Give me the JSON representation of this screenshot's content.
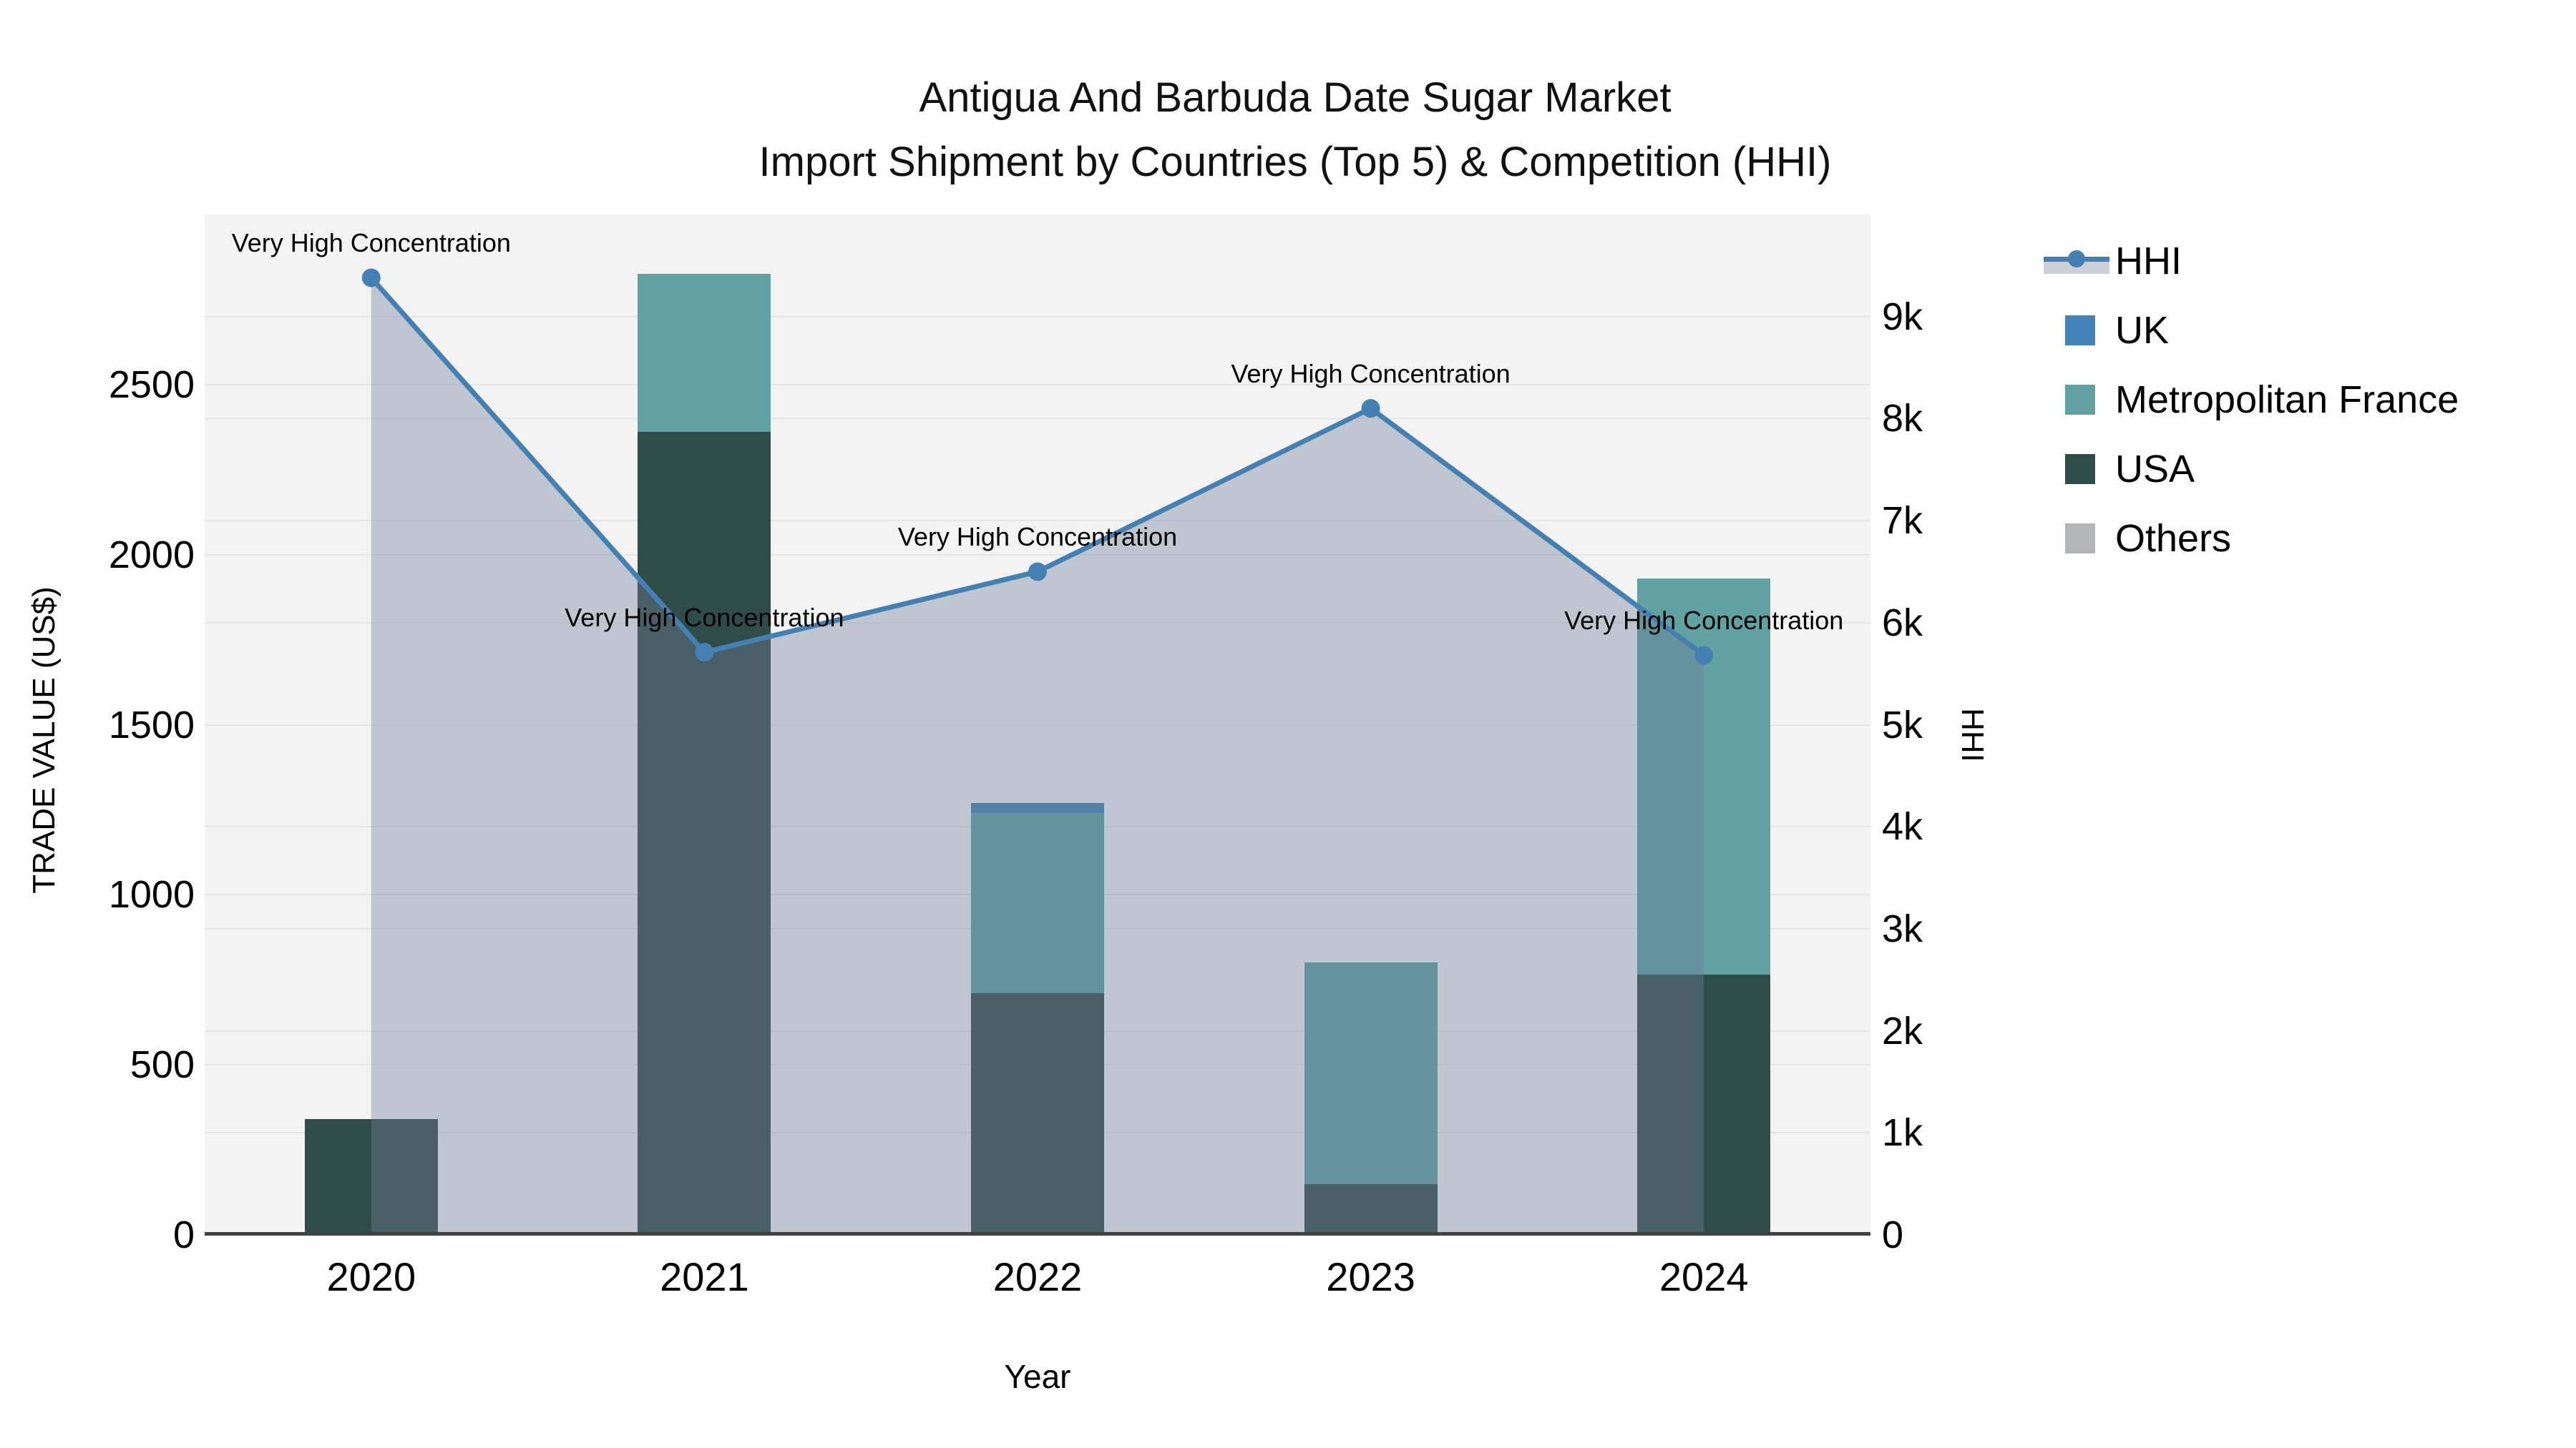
{
  "title": {
    "line1": "Antigua And Barbuda Date Sugar Market",
    "line2": "Import Shipment by Countries (Top 5) & Competition (HHI)"
  },
  "axes": {
    "x": {
      "label": "Year",
      "ticks": [
        "2020",
        "2021",
        "2022",
        "2023",
        "2024"
      ]
    },
    "left": {
      "label": "TRADE VALUE (US$)",
      "ticks": [
        "0",
        "500",
        "1000",
        "1500",
        "2000",
        "2500"
      ],
      "range": [
        0,
        3000
      ],
      "tick_step": 500
    },
    "right": {
      "label": "HHI",
      "ticks": [
        "0",
        "1k",
        "2k",
        "3k",
        "4k",
        "5k",
        "6k",
        "7k",
        "8k",
        "9k"
      ],
      "range": [
        0,
        10000
      ],
      "tick_step": 1000
    }
  },
  "legend": {
    "items": [
      {
        "label": "HHI",
        "type": "line"
      },
      {
        "label": "UK",
        "type": "swatch",
        "color": "#4484b8"
      },
      {
        "label": "Metropolitan France",
        "type": "swatch",
        "color": "#60a1a2"
      },
      {
        "label": "USA",
        "type": "swatch",
        "color": "#2f4c48"
      },
      {
        "label": "Others",
        "type": "swatch",
        "color": "#b2b5b7"
      }
    ]
  },
  "colors": {
    "plot_bg": "#f2f3f2",
    "gridline": "#e4e6e8",
    "axis_line": "#3f4142",
    "hhi_line": "#4580b2",
    "hhi_fill": "rgba(110,125,150,0.38)",
    "UK": "#4484b8",
    "Metropolitan France": "#60a1a2",
    "USA": "#2f4c48",
    "Others": "#b2b5b7"
  },
  "chart_data": {
    "type": "composite",
    "subtype": "stacked-bar + line",
    "categories": [
      "2020",
      "2021",
      "2022",
      "2023",
      "2024"
    ],
    "bar_axis": "left",
    "stack_order_bottom_to_top": [
      "USA",
      "Metropolitan France",
      "UK",
      "Others"
    ],
    "series": [
      {
        "name": "UK",
        "type": "bar",
        "values": [
          0,
          0,
          30,
          0,
          0
        ]
      },
      {
        "name": "Metropolitan France",
        "type": "bar",
        "values": [
          0,
          465,
          530,
          650,
          1165
        ]
      },
      {
        "name": "USA",
        "type": "bar",
        "values": [
          340,
          2360,
          710,
          150,
          765
        ]
      },
      {
        "name": "Others",
        "type": "bar",
        "values": [
          0,
          0,
          0,
          0,
          0
        ]
      },
      {
        "name": "HHI",
        "type": "line",
        "axis": "right",
        "fill": "tozeroy",
        "values": [
          9380,
          5710,
          6500,
          8100,
          5680
        ]
      }
    ],
    "bar_totals": [
      340,
      2825,
      1270,
      800,
      1930
    ],
    "annotations": [
      {
        "text": "Very High Concentration",
        "x": "2020",
        "y": 9380,
        "axis": "right"
      },
      {
        "text": "Very High Concentration",
        "x": "2021",
        "y": 5710,
        "axis": "right"
      },
      {
        "text": "Very High Concentration",
        "x": "2022",
        "y": 6500,
        "axis": "right"
      },
      {
        "text": "Very High Concentration",
        "x": "2023",
        "y": 8100,
        "axis": "right"
      },
      {
        "text": "Very High Concentration",
        "x": "2024",
        "y": 5680,
        "axis": "right"
      }
    ],
    "title": "Antigua And Barbuda Date Sugar Market Import Shipment by Countries (Top 5) & Competition (HHI)",
    "xlabel": "Year",
    "ylabel_left": "TRADE VALUE (US$)",
    "ylabel_right": "HHI",
    "grid": true,
    "legend_position": "right"
  }
}
